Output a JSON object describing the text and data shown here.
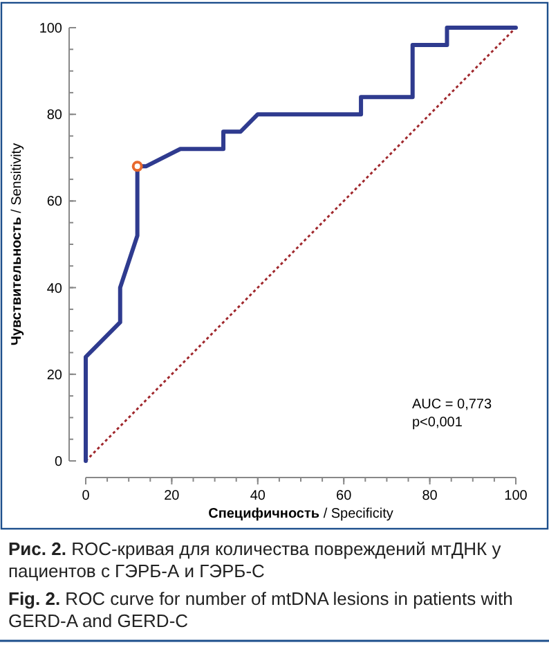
{
  "chart_data": {
    "type": "line",
    "xlabel": "Специфичность / Specificity",
    "ylabel": "Чувствительность / Sensitivity",
    "xlim": [
      0,
      100
    ],
    "ylim": [
      0,
      100
    ],
    "xticks": [
      0,
      20,
      40,
      60,
      80,
      100
    ],
    "yticks": [
      0,
      20,
      40,
      60,
      80,
      100
    ],
    "series": [
      {
        "color": "#a0282d",
        "line_style": "dotted",
        "marker": "none",
        "x": [
          0,
          100
        ],
        "values": [
          0,
          100
        ]
      },
      {
        "color": "#2f3b8f",
        "line_style": "solid",
        "marker": "none",
        "x": [
          0,
          0,
          8,
          8,
          12,
          12,
          14,
          22,
          32,
          32,
          36,
          40,
          64,
          64,
          76,
          76,
          84,
          84,
          100
        ],
        "values": [
          0,
          24,
          32,
          40,
          52,
          68,
          68,
          72,
          72,
          76,
          76,
          80,
          80,
          84,
          84,
          96,
          96,
          100,
          100
        ]
      },
      {
        "type": "scatter",
        "color": "#e8692d",
        "marker": "circle",
        "x": [
          12
        ],
        "values": [
          68
        ]
      }
    ],
    "title": "Рис. 2. ROC-кривая для количества повреждений мтДНК у пациентов с ГЭРБ-А и ГЭРБ-С",
    "subtitle": "Fig. 2. ROC curve for number of mtDNA lesions in patients with GERD-A and GERD-C",
    "annotations": [
      "AUC = 0,773",
      "p<0,001"
    ]
  }
}
